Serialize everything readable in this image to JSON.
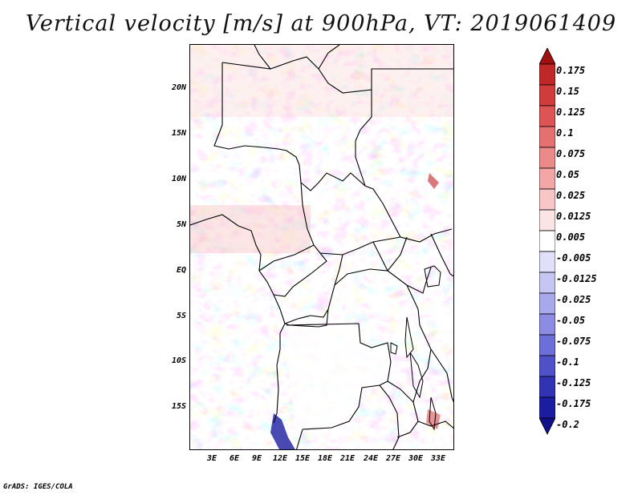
{
  "title": "Vertical velocity [m/s] at 900hPa, VT: 2019061409",
  "credit": "GrADS: IGES/COLA",
  "map": {
    "lat_labels": [
      "20N",
      "15N",
      "10N",
      "5N",
      "EQ",
      "5S",
      "10S",
      "15S"
    ],
    "lat_values": [
      20,
      15,
      10,
      5,
      0,
      -5,
      -10,
      -15
    ],
    "lon_labels": [
      "3E",
      "6E",
      "9E",
      "12E",
      "15E",
      "18E",
      "21E",
      "24E",
      "27E",
      "30E",
      "33E"
    ],
    "lon_values": [
      3,
      6,
      9,
      12,
      15,
      18,
      21,
      24,
      27,
      30,
      33
    ],
    "lon_range": [
      0,
      35
    ],
    "lat_range": [
      -20,
      25
    ]
  },
  "colorbar": {
    "levels": [
      "0.175",
      "0.15",
      "0.125",
      "0.1",
      "0.075",
      "0.05",
      "0.025",
      "0.0125",
      "0.005",
      "-0.005",
      "-0.0125",
      "-0.025",
      "-0.05",
      "-0.075",
      "-0.1",
      "-0.125",
      "-0.175",
      "-0.2"
    ],
    "colors": [
      "#a01010",
      "#c02828",
      "#d03c3c",
      "#dc5454",
      "#e47070",
      "#ec8a8a",
      "#f4a6a6",
      "#f8c6c6",
      "#fde4e4",
      "#ffffff",
      "#e0e0fa",
      "#c6c6f2",
      "#a8a8ec",
      "#8c8ce4",
      "#6e6ed8",
      "#5050c8",
      "#3232b4",
      "#1c1ca0",
      "#10108a"
    ]
  },
  "chart_data": {
    "type": "heatmap",
    "title": "Vertical velocity [m/s] at 900hPa, VT: 2019061409",
    "variable": "Vertical velocity",
    "units": "m/s",
    "level": "900hPa",
    "valid_time": "2019061409",
    "x_range": [
      0,
      35
    ],
    "y_range": [
      -20,
      25
    ],
    "xlabel": "",
    "ylabel": ""
  }
}
